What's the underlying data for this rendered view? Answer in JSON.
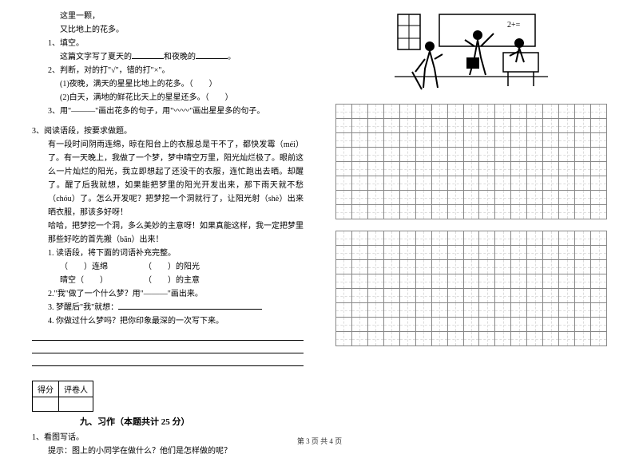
{
  "left": {
    "poem_l1": "这里一颗，",
    "poem_l2": "又比地上的花多。",
    "q1_label": "1、填空。",
    "q1_text_a": "这篇文字写了夏天的",
    "q1_text_b": "和夜晚的",
    "q1_text_c": "。",
    "q2_label": "2、判断，对的打\"√\"，错的打\"×\"。",
    "q2_1": "(1)夜晚，满天的星星比地上的花多。（　　）",
    "q2_2": "(2)白天，满地的鲜花比天上的星星还多。（　　）",
    "q3_label": "3、用\"———\"画出花多的句子，用\"〰〰\"画出星星多的句子。",
    "p3_label": "3、阅读语段，按要求做题。",
    "para1": "有一段时间阴雨连绵，晾在阳台上的衣服总是干不了，都快发霉（méi）了。有一天晚上，我做了一个梦，梦中晴空万里，阳光灿烂极了。眼前这么一片灿烂的阳光，我立即想起了还没干的衣服，连忙跑出去晒。却醒了。醒了后我就想，如果能把梦里的阳光开发出来，那下雨天就不愁（chóu）了。怎么开发呢？把梦挖一个洞就行了，让阳光射（shè）出来晒衣服，那该多好呀！",
    "para2": "哈哈，把梦挖一个洞，多么美妙的主意呀！如果真能这样，我一定把梦里那些好吃的首先搬（bān）出来！",
    "sub1_label": "1. 读语段，将下面的词语补充完整。",
    "sub1_row1a": "（　　）连绵",
    "sub1_row1b": "（　　）的阳光",
    "sub1_row2a": "晴空（　　）",
    "sub1_row2b": "（　　）的主意",
    "sub2": "2.\"我\"做了一个什么梦？用\"———\"画出来。",
    "sub3": "3. 梦醒后\"我\"就想：",
    "sub4": "4. 你做过什么梦吗？把你印象最深的一次写下来。",
    "score_a": "得分",
    "score_b": "评卷人",
    "section9": "九、习作（本题共计 25 分）",
    "task1_label": "1、看图写话。",
    "task1_hint": "　　提示：图上的小同学在做什么？他们是怎样做的呢？"
  },
  "grid": {
    "cols": 17,
    "block1_rows": 8,
    "block2_rows": 8,
    "cell_border": "#888888",
    "guide_color": "#dddddd"
  },
  "footer": "第 3 页 共 4 页"
}
